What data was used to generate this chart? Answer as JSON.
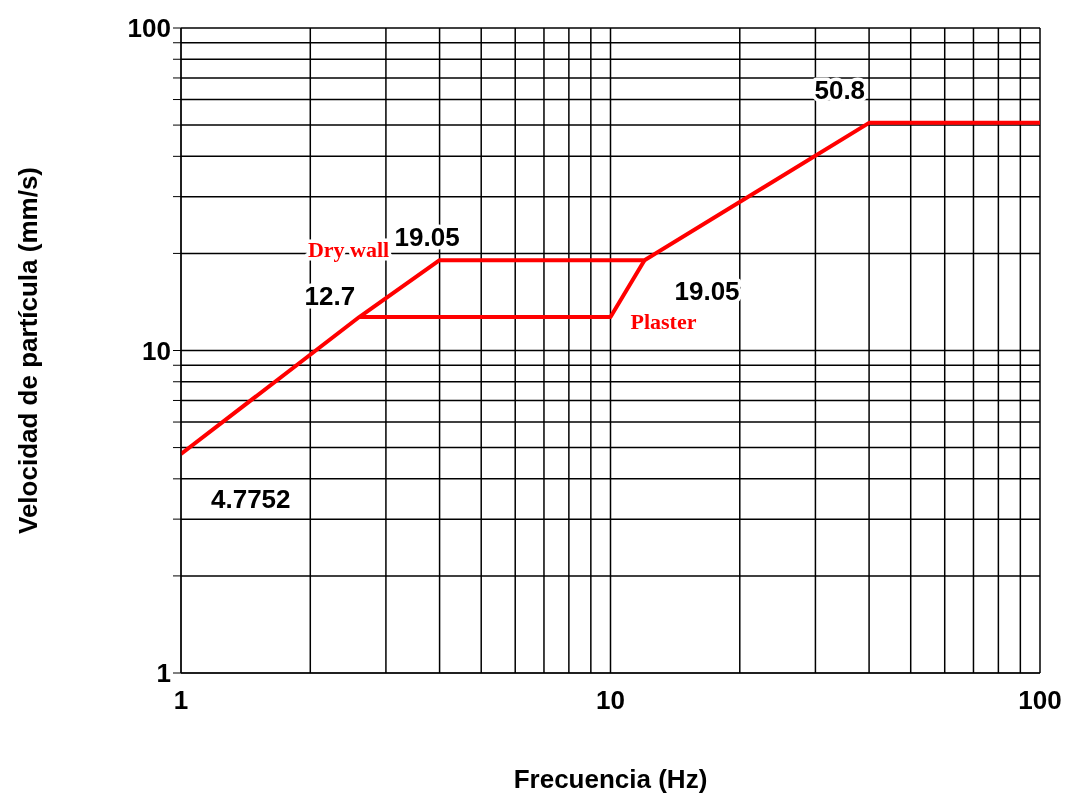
{
  "chart_data": {
    "type": "line",
    "xlabel": "Frecuencia (Hz)",
    "ylabel": "Velocidad de partícula (mm/s)",
    "series": [
      {
        "name": "Dry wall",
        "color": "#ff0000",
        "x": [
          1,
          2.6,
          4,
          12,
          40,
          100
        ],
        "values": [
          4.7752,
          12.7,
          19.05,
          19.05,
          50.8,
          50.8
        ]
      },
      {
        "name": "Plaster",
        "color": "#ff0000",
        "x": [
          2.6,
          10,
          12
        ],
        "values": [
          12.7,
          12.7,
          19.05
        ]
      }
    ],
    "log": "xy",
    "xlim": [
      1,
      100
    ],
    "ylim": [
      1,
      100
    ],
    "xticks": [
      1,
      {
        "value": 2,
        "label": null
      },
      {
        "value": 3,
        "label": null
      },
      {
        "value": 4,
        "label": null
      },
      {
        "value": 5,
        "label": null
      },
      {
        "value": 6,
        "label": null
      },
      {
        "value": 7,
        "label": null
      },
      {
        "value": 8,
        "label": null
      },
      {
        "value": 9,
        "label": null
      },
      10,
      {
        "value": 20,
        "label": null
      },
      {
        "value": 30,
        "label": null
      },
      {
        "value": 40,
        "label": null
      },
      {
        "value": 50,
        "label": null
      },
      {
        "value": 60,
        "label": null
      },
      {
        "value": 70,
        "label": null
      },
      {
        "value": 80,
        "label": null
      },
      {
        "value": 90,
        "label": null
      },
      100
    ],
    "yticks": [
      1,
      {
        "value": 2,
        "label": null
      },
      {
        "value": 3,
        "label": null
      },
      {
        "value": 4,
        "label": null
      },
      {
        "value": 5,
        "label": null
      },
      {
        "value": 6,
        "label": null
      },
      {
        "value": 7,
        "label": null
      },
      {
        "value": 8,
        "label": null
      },
      {
        "value": 9,
        "label": null
      },
      10,
      {
        "value": 20,
        "label": null
      },
      {
        "value": 30,
        "label": null
      },
      {
        "value": 40,
        "label": null
      },
      {
        "value": 50,
        "label": null
      },
      {
        "value": 60,
        "label": null
      },
      {
        "value": 70,
        "label": null
      },
      {
        "value": 80,
        "label": null
      },
      {
        "value": 90,
        "label": null
      },
      100
    ],
    "grid": true,
    "legend": false,
    "marker": "none",
    "line_style": "solid",
    "annotations": [
      {
        "text": "4.7752",
        "x": 1,
        "y": 4.7752
      },
      {
        "text": "12.7",
        "x": 2.6,
        "y": 12.7
      },
      {
        "text": "19.05",
        "x": 4,
        "y": 19.05
      },
      {
        "text": "19.05",
        "x": 12,
        "y": 19.05
      },
      {
        "text": "50.8",
        "x": 40,
        "y": 50.8
      }
    ]
  }
}
